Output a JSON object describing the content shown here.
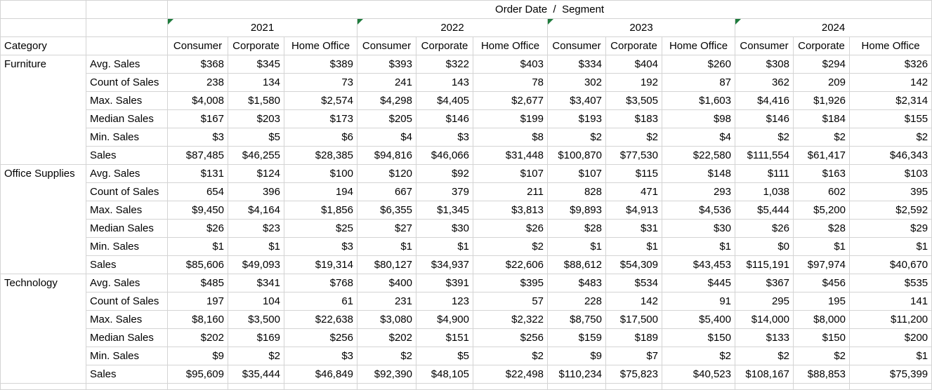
{
  "sheet": {
    "title": "Order Date  /  Segment",
    "category_header": "Category",
    "corner_icon_color": "#1e7b3c",
    "gridline_color": "#d4d4d4",
    "years": [
      "2021",
      "2022",
      "2023",
      "2024"
    ],
    "segments": [
      "Consumer",
      "Corporate",
      "Home Office"
    ],
    "groups": [
      {
        "name": "Furniture",
        "rows": [
          {
            "label": "Avg. Sales",
            "values": [
              "$368",
              "$345",
              "$389",
              "$393",
              "$322",
              "$403",
              "$334",
              "$404",
              "$260",
              "$308",
              "$294",
              "$326"
            ]
          },
          {
            "label": "Count of Sales",
            "values": [
              "238",
              "134",
              "73",
              "241",
              "143",
              "78",
              "302",
              "192",
              "87",
              "362",
              "209",
              "142"
            ]
          },
          {
            "label": "Max. Sales",
            "values": [
              "$4,008",
              "$1,580",
              "$2,574",
              "$4,298",
              "$4,405",
              "$2,677",
              "$3,407",
              "$3,505",
              "$1,603",
              "$4,416",
              "$1,926",
              "$2,314"
            ]
          },
          {
            "label": "Median Sales",
            "values": [
              "$167",
              "$203",
              "$173",
              "$205",
              "$146",
              "$199",
              "$193",
              "$183",
              "$98",
              "$146",
              "$184",
              "$155"
            ]
          },
          {
            "label": "Min. Sales",
            "values": [
              "$3",
              "$5",
              "$6",
              "$4",
              "$3",
              "$8",
              "$2",
              "$2",
              "$4",
              "$2",
              "$2",
              "$2"
            ]
          },
          {
            "label": "Sales",
            "values": [
              "$87,485",
              "$46,255",
              "$28,385",
              "$94,816",
              "$46,066",
              "$31,448",
              "$100,870",
              "$77,530",
              "$22,580",
              "$111,554",
              "$61,417",
              "$46,343"
            ]
          }
        ]
      },
      {
        "name": "Office Supplies",
        "rows": [
          {
            "label": "Avg. Sales",
            "values": [
              "$131",
              "$124",
              "$100",
              "$120",
              "$92",
              "$107",
              "$107",
              "$115",
              "$148",
              "$111",
              "$163",
              "$103"
            ]
          },
          {
            "label": "Count of Sales",
            "values": [
              "654",
              "396",
              "194",
              "667",
              "379",
              "211",
              "828",
              "471",
              "293",
              "1,038",
              "602",
              "395"
            ]
          },
          {
            "label": "Max. Sales",
            "values": [
              "$9,450",
              "$4,164",
              "$1,856",
              "$6,355",
              "$1,345",
              "$3,813",
              "$9,893",
              "$4,913",
              "$4,536",
              "$5,444",
              "$5,200",
              "$2,592"
            ]
          },
          {
            "label": "Median Sales",
            "values": [
              "$26",
              "$23",
              "$25",
              "$27",
              "$30",
              "$26",
              "$28",
              "$31",
              "$30",
              "$26",
              "$28",
              "$29"
            ]
          },
          {
            "label": "Min. Sales",
            "values": [
              "$1",
              "$1",
              "$3",
              "$1",
              "$1",
              "$2",
              "$1",
              "$1",
              "$1",
              "$0",
              "$1",
              "$1"
            ]
          },
          {
            "label": "Sales",
            "values": [
              "$85,606",
              "$49,093",
              "$19,314",
              "$80,127",
              "$34,937",
              "$22,606",
              "$88,612",
              "$54,309",
              "$43,453",
              "$115,191",
              "$97,974",
              "$40,670"
            ]
          }
        ]
      },
      {
        "name": "Technology",
        "rows": [
          {
            "label": "Avg. Sales",
            "values": [
              "$485",
              "$341",
              "$768",
              "$400",
              "$391",
              "$395",
              "$483",
              "$534",
              "$445",
              "$367",
              "$456",
              "$535"
            ]
          },
          {
            "label": "Count of Sales",
            "values": [
              "197",
              "104",
              "61",
              "231",
              "123",
              "57",
              "228",
              "142",
              "91",
              "295",
              "195",
              "141"
            ]
          },
          {
            "label": "Max. Sales",
            "values": [
              "$8,160",
              "$3,500",
              "$22,638",
              "$3,080",
              "$4,900",
              "$2,322",
              "$8,750",
              "$17,500",
              "$5,400",
              "$14,000",
              "$8,000",
              "$11,200"
            ]
          },
          {
            "label": "Median Sales",
            "values": [
              "$202",
              "$169",
              "$256",
              "$202",
              "$151",
              "$256",
              "$159",
              "$189",
              "$150",
              "$133",
              "$150",
              "$200"
            ]
          },
          {
            "label": "Min. Sales",
            "values": [
              "$9",
              "$2",
              "$3",
              "$2",
              "$5",
              "$2",
              "$9",
              "$7",
              "$2",
              "$2",
              "$2",
              "$1"
            ]
          },
          {
            "label": "Sales",
            "values": [
              "$95,609",
              "$35,444",
              "$46,849",
              "$92,390",
              "$48,105",
              "$22,498",
              "$110,234",
              "$75,823",
              "$40,523",
              "$108,167",
              "$88,853",
              "$75,399"
            ]
          }
        ]
      }
    ]
  }
}
